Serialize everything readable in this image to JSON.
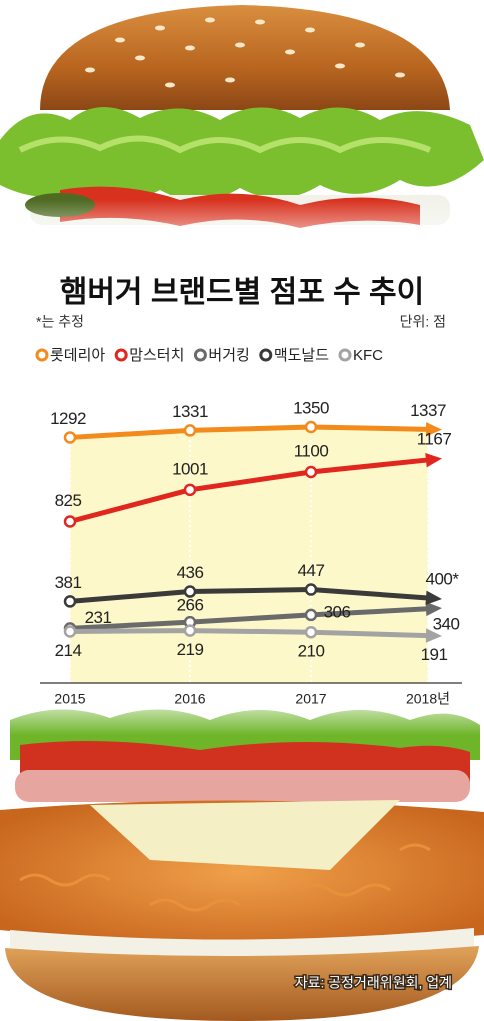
{
  "chart_data": {
    "type": "line",
    "title": "햄버거 브랜드별 점포 수 추이",
    "note": "*는 추정",
    "unit": "단위: 점",
    "source": "자료: 공정거래위원회, 업계",
    "categories": [
      "2015",
      "2016",
      "2017",
      "2018년"
    ],
    "ylim": [
      0,
      1500
    ],
    "legend": "top",
    "series": [
      {
        "name": "롯데리아",
        "color": "#f28a1c",
        "values": [
          1292,
          1331,
          1350,
          1337
        ]
      },
      {
        "name": "맘스터치",
        "color": "#e0261e",
        "values": [
          825,
          1001,
          1100,
          1167
        ]
      },
      {
        "name": "버거킹",
        "color": "#6a6a6a",
        "values": [
          231,
          266,
          306,
          340
        ]
      },
      {
        "name": "맥도날드",
        "color": "#3a3a3a",
        "values": [
          381,
          436,
          447,
          400
        ],
        "value_labels": [
          "381",
          "436",
          "447",
          "400*"
        ]
      },
      {
        "name": "KFC",
        "color": "#a3a3a3",
        "values": [
          214,
          219,
          210,
          191
        ]
      }
    ]
  }
}
